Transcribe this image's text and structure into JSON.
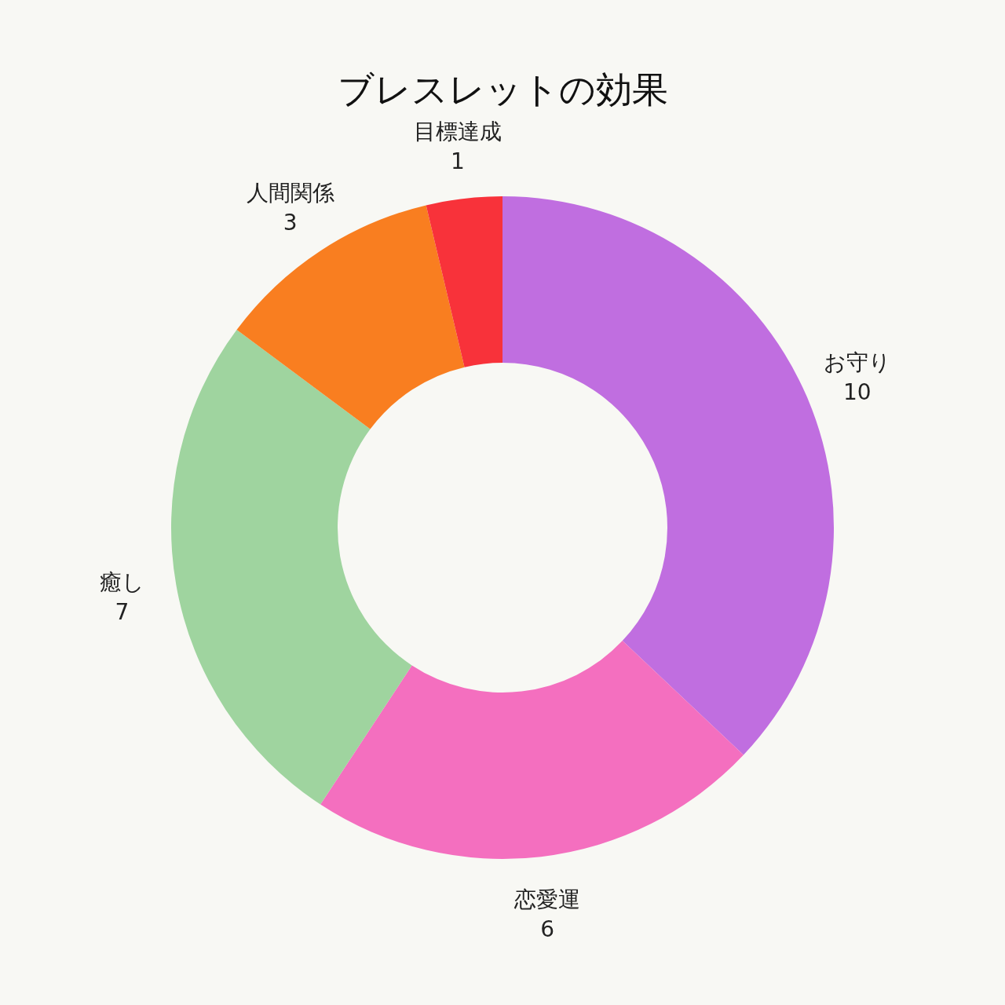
{
  "chart_data": {
    "type": "donut",
    "title": "ブレスレットの効果",
    "categories": [
      "お守り",
      "恋愛運",
      "癒し",
      "人間関係",
      "目標達成"
    ],
    "values": [
      10,
      6,
      7,
      3,
      1
    ],
    "colors": [
      "#c06ee0",
      "#f46fbf",
      "#9fd49f",
      "#f97e20",
      "#f8323a"
    ],
    "data_labels": true
  }
}
